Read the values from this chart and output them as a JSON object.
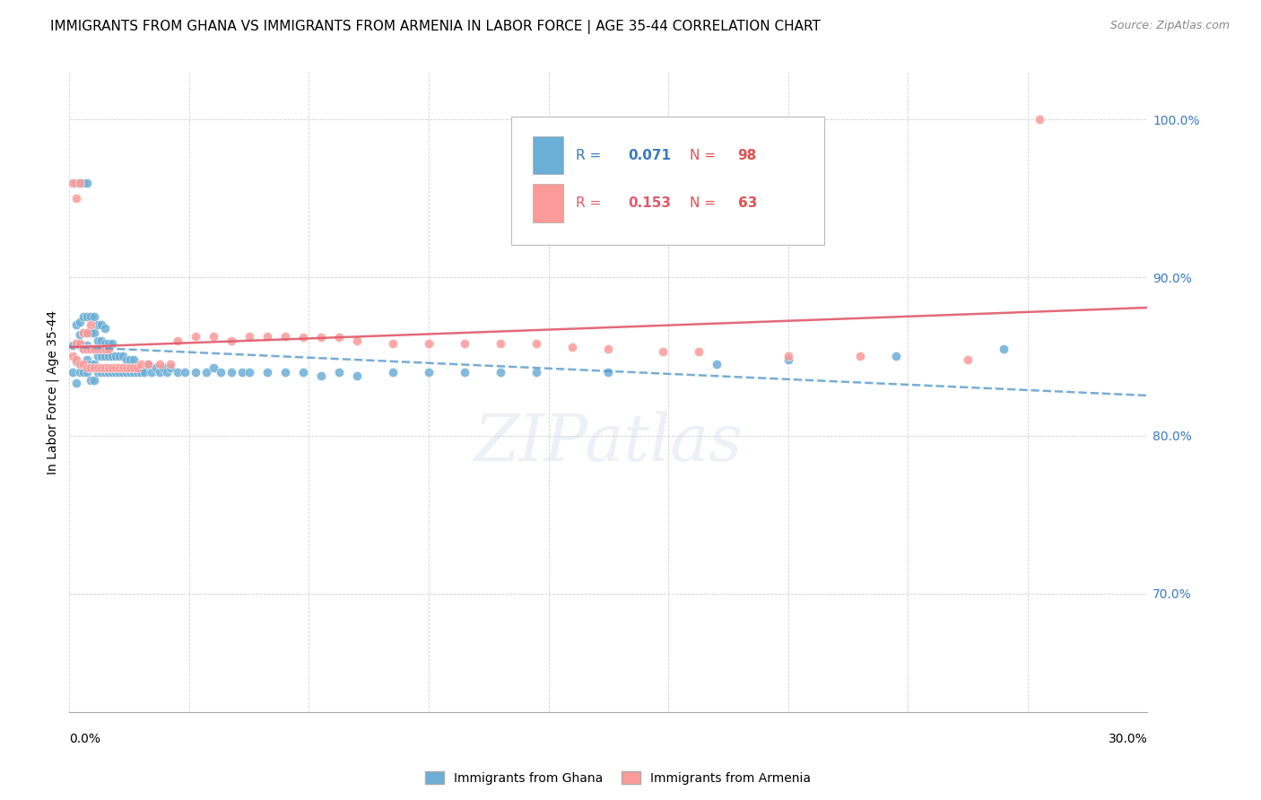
{
  "title": "IMMIGRANTS FROM GHANA VS IMMIGRANTS FROM ARMENIA IN LABOR FORCE | AGE 35-44 CORRELATION CHART",
  "source": "Source: ZipAtlas.com",
  "ylabel": "In Labor Force | Age 35-44",
  "yticks": [
    0.7,
    0.8,
    0.9,
    1.0
  ],
  "ytick_labels": [
    "70.0%",
    "80.0%",
    "90.0%",
    "100.0%"
  ],
  "xlim": [
    0.0,
    0.3
  ],
  "ylim": [
    0.625,
    1.03
  ],
  "ghana_R": 0.071,
  "ghana_N": 98,
  "armenia_R": 0.153,
  "armenia_N": 63,
  "ghana_color": "#6baed6",
  "armenia_color": "#fb9a99",
  "ghana_trendline_color": "#5599cc",
  "armenia_trendline_color": "#e05a6a",
  "background_color": "#ffffff",
  "grid_color": "#cccccc",
  "ghana_x": [
    0.001,
    0.001,
    0.002,
    0.002,
    0.002,
    0.002,
    0.002,
    0.003,
    0.003,
    0.003,
    0.003,
    0.003,
    0.004,
    0.004,
    0.004,
    0.004,
    0.004,
    0.005,
    0.005,
    0.005,
    0.005,
    0.005,
    0.005,
    0.006,
    0.006,
    0.006,
    0.006,
    0.006,
    0.007,
    0.007,
    0.007,
    0.007,
    0.007,
    0.008,
    0.008,
    0.008,
    0.008,
    0.009,
    0.009,
    0.009,
    0.009,
    0.01,
    0.01,
    0.01,
    0.01,
    0.011,
    0.011,
    0.011,
    0.012,
    0.012,
    0.012,
    0.013,
    0.013,
    0.014,
    0.014,
    0.015,
    0.015,
    0.016,
    0.016,
    0.017,
    0.017,
    0.018,
    0.018,
    0.019,
    0.02,
    0.021,
    0.022,
    0.023,
    0.024,
    0.025,
    0.026,
    0.027,
    0.028,
    0.03,
    0.032,
    0.035,
    0.038,
    0.04,
    0.042,
    0.045,
    0.048,
    0.05,
    0.055,
    0.06,
    0.065,
    0.07,
    0.075,
    0.08,
    0.09,
    0.1,
    0.11,
    0.12,
    0.13,
    0.15,
    0.18,
    0.2,
    0.23,
    0.26
  ],
  "ghana_y": [
    0.84,
    0.857,
    0.833,
    0.847,
    0.858,
    0.87,
    0.96,
    0.84,
    0.857,
    0.864,
    0.872,
    0.96,
    0.84,
    0.855,
    0.865,
    0.875,
    0.96,
    0.84,
    0.848,
    0.857,
    0.865,
    0.875,
    0.96,
    0.835,
    0.845,
    0.855,
    0.865,
    0.875,
    0.835,
    0.845,
    0.855,
    0.865,
    0.875,
    0.84,
    0.85,
    0.86,
    0.87,
    0.84,
    0.85,
    0.86,
    0.87,
    0.84,
    0.85,
    0.858,
    0.868,
    0.84,
    0.85,
    0.858,
    0.84,
    0.85,
    0.858,
    0.84,
    0.85,
    0.84,
    0.85,
    0.84,
    0.85,
    0.84,
    0.848,
    0.84,
    0.848,
    0.84,
    0.848,
    0.84,
    0.84,
    0.84,
    0.845,
    0.84,
    0.843,
    0.84,
    0.843,
    0.84,
    0.843,
    0.84,
    0.84,
    0.84,
    0.84,
    0.843,
    0.84,
    0.84,
    0.84,
    0.84,
    0.84,
    0.84,
    0.84,
    0.838,
    0.84,
    0.838,
    0.84,
    0.84,
    0.84,
    0.84,
    0.84,
    0.84,
    0.845,
    0.848,
    0.85,
    0.855
  ],
  "armenia_x": [
    0.001,
    0.001,
    0.002,
    0.002,
    0.002,
    0.003,
    0.003,
    0.003,
    0.004,
    0.004,
    0.004,
    0.005,
    0.005,
    0.005,
    0.006,
    0.006,
    0.006,
    0.007,
    0.007,
    0.008,
    0.008,
    0.009,
    0.009,
    0.01,
    0.01,
    0.011,
    0.011,
    0.012,
    0.013,
    0.014,
    0.015,
    0.016,
    0.017,
    0.018,
    0.019,
    0.02,
    0.022,
    0.025,
    0.028,
    0.03,
    0.035,
    0.04,
    0.045,
    0.05,
    0.055,
    0.06,
    0.065,
    0.07,
    0.075,
    0.08,
    0.09,
    0.1,
    0.11,
    0.12,
    0.13,
    0.14,
    0.15,
    0.165,
    0.175,
    0.2,
    0.22,
    0.25,
    0.27
  ],
  "armenia_y": [
    0.85,
    0.96,
    0.848,
    0.858,
    0.95,
    0.845,
    0.858,
    0.96,
    0.845,
    0.855,
    0.865,
    0.843,
    0.855,
    0.865,
    0.843,
    0.855,
    0.87,
    0.843,
    0.855,
    0.843,
    0.855,
    0.843,
    0.855,
    0.843,
    0.855,
    0.843,
    0.855,
    0.843,
    0.843,
    0.843,
    0.843,
    0.843,
    0.843,
    0.843,
    0.843,
    0.845,
    0.845,
    0.845,
    0.845,
    0.86,
    0.863,
    0.863,
    0.86,
    0.863,
    0.863,
    0.863,
    0.862,
    0.862,
    0.862,
    0.86,
    0.858,
    0.858,
    0.858,
    0.858,
    0.858,
    0.856,
    0.855,
    0.853,
    0.853,
    0.85,
    0.85,
    0.848,
    1.0
  ]
}
